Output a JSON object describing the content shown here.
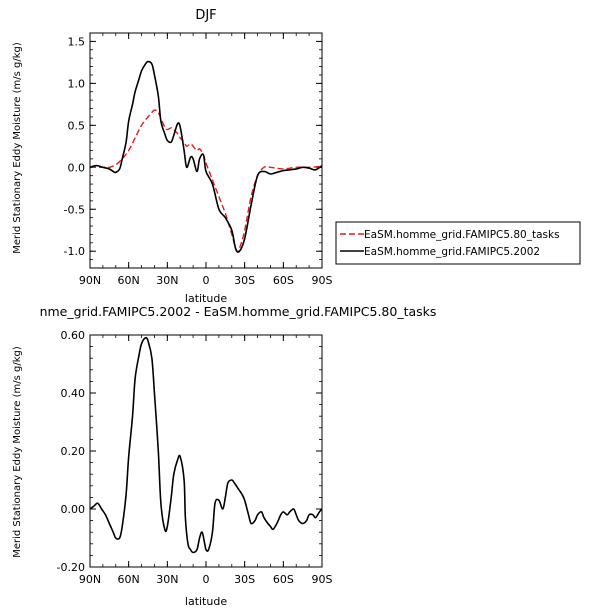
{
  "chart_data": [
    {
      "type": "line",
      "title": "DJF",
      "xlabel": "latitude",
      "ylabel": "Merid Stationary Eddy Moisture (m/s g/kg)",
      "xlim": [
        -90,
        90
      ],
      "ylim": [
        -1.2,
        1.6
      ],
      "x_ticks": [
        -90,
        -60,
        -30,
        0,
        30,
        60,
        90
      ],
      "x_tick_labels": [
        "90N",
        "60N",
        "30N",
        "0",
        "30S",
        "60S",
        "90S"
      ],
      "y_ticks": [
        -1.0,
        -0.5,
        0.0,
        0.5,
        1.0,
        1.5
      ],
      "y_tick_labels": [
        "-1.0",
        "-0.5",
        "0.0",
        "0.5",
        "1.0",
        "1.5"
      ],
      "legend_position": "right",
      "series": [
        {
          "name": "EaSM.homme_grid.FAMIPC5.80_tasks",
          "color": "#e41a1c",
          "dash": "dashed",
          "x": [
            -90,
            -80,
            -75,
            -70,
            -65,
            -60,
            -55,
            -50,
            -45,
            -40,
            -37,
            -35,
            -32,
            -30,
            -27,
            -25,
            -22,
            -20,
            -17,
            -15,
            -12,
            -10,
            -7,
            -5,
            -2,
            0,
            5,
            10,
            15,
            20,
            24,
            27,
            30,
            35,
            40,
            45,
            50,
            60,
            70,
            80,
            90
          ],
          "y": [
            0.0,
            0.0,
            0.0,
            0.03,
            0.1,
            0.2,
            0.35,
            0.5,
            0.6,
            0.68,
            0.65,
            0.58,
            0.48,
            0.45,
            0.47,
            0.45,
            0.4,
            0.35,
            0.3,
            0.25,
            0.28,
            0.25,
            0.2,
            0.22,
            0.15,
            0.05,
            -0.15,
            -0.35,
            -0.55,
            -0.8,
            -1.0,
            -0.92,
            -0.75,
            -0.35,
            -0.1,
            0.0,
            0.0,
            -0.02,
            0.0,
            0.0,
            0.01
          ]
        },
        {
          "name": "EaSM.homme_grid.FAMIPC5.2002",
          "color": "#000000",
          "dash": "solid",
          "x": [
            -90,
            -85,
            -80,
            -75,
            -72,
            -70,
            -67,
            -65,
            -62,
            -60,
            -57,
            -55,
            -52,
            -50,
            -47,
            -45,
            -42,
            -40,
            -37,
            -35,
            -32,
            -30,
            -27,
            -25,
            -22,
            -20,
            -17,
            -15,
            -12,
            -10,
            -7,
            -5,
            -2,
            0,
            5,
            10,
            15,
            20,
            23,
            26,
            30,
            35,
            40,
            45,
            50,
            55,
            60,
            65,
            70,
            75,
            80,
            85,
            90
          ],
          "y": [
            0.0,
            0.02,
            0.0,
            -0.02,
            -0.05,
            -0.06,
            -0.02,
            0.1,
            0.3,
            0.55,
            0.75,
            0.9,
            1.05,
            1.15,
            1.23,
            1.26,
            1.23,
            1.1,
            0.85,
            0.55,
            0.4,
            0.32,
            0.3,
            0.38,
            0.52,
            0.48,
            0.2,
            0.0,
            0.12,
            0.1,
            -0.05,
            0.1,
            0.15,
            -0.05,
            -0.2,
            -0.5,
            -0.6,
            -0.75,
            -0.97,
            -1.0,
            -0.85,
            -0.45,
            -0.1,
            -0.05,
            -0.08,
            -0.06,
            -0.04,
            -0.03,
            -0.02,
            0.0,
            -0.01,
            -0.03,
            0.02
          ]
        }
      ]
    },
    {
      "type": "line",
      "title": "nme_grid.FAMIPC5.2002 - EaSM.homme_grid.FAMIPC5.80_tasks",
      "xlabel": "latitude",
      "ylabel": "Merid Stationary Eddy Moisture (m/s g/kg)",
      "xlim": [
        -90,
        90
      ],
      "ylim": [
        -0.2,
        0.6
      ],
      "x_ticks": [
        -90,
        -60,
        -30,
        0,
        30,
        60,
        90
      ],
      "x_tick_labels": [
        "90N",
        "60N",
        "30N",
        "0",
        "30S",
        "60S",
        "90S"
      ],
      "y_ticks": [
        -0.2,
        0.0,
        0.2,
        0.4,
        0.6
      ],
      "y_tick_labels": [
        "-0.20",
        "0.00",
        "0.20",
        "0.40",
        "0.60"
      ],
      "series": [
        {
          "color": "#000000",
          "dash": "solid",
          "x": [
            -90,
            -87,
            -84,
            -81,
            -78,
            -75,
            -72,
            -70,
            -67,
            -65,
            -62,
            -60,
            -57,
            -55,
            -52,
            -50,
            -47,
            -45,
            -42,
            -40,
            -37,
            -35,
            -32,
            -30,
            -27,
            -25,
            -22,
            -20,
            -17,
            -16,
            -14,
            -12,
            -10,
            -7,
            -5,
            -3,
            -1,
            0,
            2,
            5,
            7,
            10,
            13,
            15,
            17,
            20,
            22,
            25,
            28,
            30,
            33,
            35,
            38,
            40,
            43,
            45,
            48,
            50,
            52,
            55,
            58,
            60,
            63,
            65,
            68,
            70,
            72,
            75,
            78,
            80,
            83,
            85,
            88,
            90
          ],
          "y": [
            0.0,
            0.01,
            0.02,
            0.0,
            -0.02,
            -0.05,
            -0.08,
            -0.1,
            -0.1,
            -0.06,
            0.05,
            0.18,
            0.32,
            0.45,
            0.53,
            0.57,
            0.59,
            0.58,
            0.52,
            0.4,
            0.2,
            0.02,
            -0.07,
            -0.06,
            0.04,
            0.12,
            0.17,
            0.18,
            0.1,
            -0.03,
            -0.12,
            -0.14,
            -0.15,
            -0.14,
            -0.1,
            -0.08,
            -0.12,
            -0.14,
            -0.14,
            -0.08,
            0.02,
            0.03,
            0.0,
            0.04,
            0.09,
            0.1,
            0.09,
            0.07,
            0.05,
            0.03,
            -0.02,
            -0.05,
            -0.04,
            -0.02,
            -0.01,
            -0.03,
            -0.05,
            -0.06,
            -0.07,
            -0.05,
            -0.02,
            -0.01,
            -0.02,
            -0.01,
            0.0,
            -0.02,
            -0.04,
            -0.05,
            -0.04,
            -0.02,
            -0.02,
            -0.03,
            -0.01,
            0.0
          ]
        }
      ]
    }
  ]
}
